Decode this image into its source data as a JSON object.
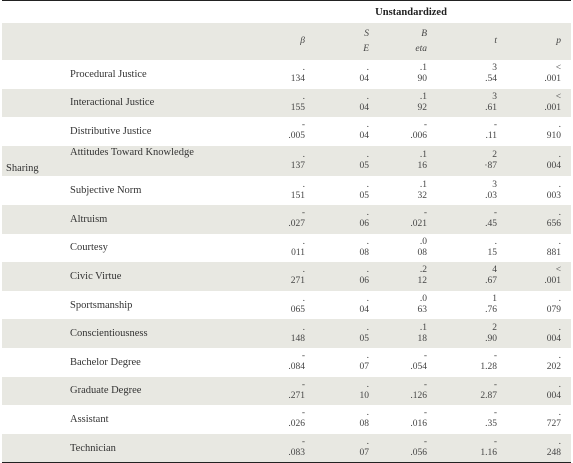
{
  "header": {
    "title": "Unstandardized"
  },
  "columns": [
    {
      "l1": "β",
      "l2": ""
    },
    {
      "l1": "S",
      "l2": "E"
    },
    {
      "l1": "B",
      "l2": "eta"
    },
    {
      "l1": "t",
      "l2": ""
    },
    {
      "l1": "p",
      "l2": ""
    }
  ],
  "group": "Sharing",
  "rows": [
    {
      "label": "Procedural Justice",
      "cells": [
        [
          ".",
          "134"
        ],
        [
          ".",
          "04"
        ],
        [
          ".1",
          "90"
        ],
        [
          "3",
          ".54"
        ],
        [
          "<",
          ".001"
        ]
      ]
    },
    {
      "label": "Interactional Justice",
      "cells": [
        [
          ".",
          "155"
        ],
        [
          ".",
          "04"
        ],
        [
          ".1",
          "92"
        ],
        [
          "3",
          ".61"
        ],
        [
          "<",
          ".001"
        ]
      ]
    },
    {
      "label": "Distributive Justice",
      "cells": [
        [
          "-",
          ".005"
        ],
        [
          ".",
          "04"
        ],
        [
          "-",
          ".006"
        ],
        [
          "-",
          ".11"
        ],
        [
          ".",
          "910"
        ]
      ]
    },
    {
      "label": "Attitudes Toward Knowledge",
      "cells": [
        [
          ".",
          "137"
        ],
        [
          ".",
          "05"
        ],
        [
          ".1",
          "16"
        ],
        [
          "2",
          "·87"
        ],
        [
          ".",
          "004"
        ]
      ]
    },
    {
      "label": "Subjective Norm",
      "cells": [
        [
          ".",
          "151"
        ],
        [
          ".",
          "05"
        ],
        [
          ".1",
          "32"
        ],
        [
          "3",
          ".03"
        ],
        [
          ".",
          "003"
        ]
      ]
    },
    {
      "label": "Altruism",
      "cells": [
        [
          "-",
          ".027"
        ],
        [
          ".",
          "06"
        ],
        [
          "-",
          ".021"
        ],
        [
          "-",
          ".45"
        ],
        [
          ".",
          "656"
        ]
      ]
    },
    {
      "label": "Courtesy",
      "cells": [
        [
          ".",
          "011"
        ],
        [
          ".",
          "08"
        ],
        [
          ".0",
          "08"
        ],
        [
          ".",
          "15"
        ],
        [
          ".",
          "881"
        ]
      ]
    },
    {
      "label": "Civic Virtue",
      "cells": [
        [
          ".",
          "271"
        ],
        [
          ".",
          "06"
        ],
        [
          ".2",
          "12"
        ],
        [
          "4",
          ".67"
        ],
        [
          "<",
          ".001"
        ]
      ]
    },
    {
      "label": "Sportsmanship",
      "cells": [
        [
          ".",
          "065"
        ],
        [
          ".",
          "04"
        ],
        [
          ".0",
          "63"
        ],
        [
          "1",
          ".76"
        ],
        [
          ".",
          "079"
        ]
      ]
    },
    {
      "label": "Conscientiousness",
      "cells": [
        [
          ".",
          "148"
        ],
        [
          ".",
          "05"
        ],
        [
          ".1",
          "18"
        ],
        [
          "2",
          ".90"
        ],
        [
          ".",
          "004"
        ]
      ]
    },
    {
      "label": "Bachelor Degree",
      "cells": [
        [
          "-",
          ".084"
        ],
        [
          ".",
          "07"
        ],
        [
          "-",
          ".054"
        ],
        [
          "-",
          "1.28"
        ],
        [
          ".",
          "202"
        ]
      ]
    },
    {
      "label": "Graduate Degree",
      "cells": [
        [
          "-",
          ".271"
        ],
        [
          ".",
          "10"
        ],
        [
          "-",
          ".126"
        ],
        [
          "-",
          "2.87"
        ],
        [
          ".",
          "004"
        ]
      ]
    },
    {
      "label": "Assistant",
      "cells": [
        [
          "-",
          ".026"
        ],
        [
          ".",
          "08"
        ],
        [
          "-",
          ".016"
        ],
        [
          "-",
          ".35"
        ],
        [
          ".",
          "727"
        ]
      ]
    },
    {
      "label": "Technician",
      "cells": [
        [
          "-",
          ".083"
        ],
        [
          ".",
          "07"
        ],
        [
          "-",
          ".056"
        ],
        [
          "-",
          "1.16"
        ],
        [
          ".",
          "248"
        ]
      ]
    }
  ]
}
